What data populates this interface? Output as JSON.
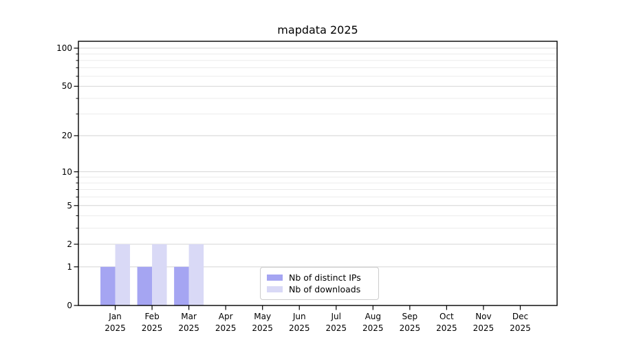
{
  "chart_data": {
    "type": "bar",
    "title": "mapdata 2025",
    "xlabel": "",
    "ylabel": "",
    "year_label": "2025",
    "months": [
      "Jan",
      "Feb",
      "Mar",
      "Apr",
      "May",
      "Jun",
      "Jul",
      "Aug",
      "Sep",
      "Oct",
      "Nov",
      "Dec"
    ],
    "categories": [
      "Jan 2025",
      "Feb 2025",
      "Mar 2025",
      "Apr 2025",
      "May 2025",
      "Jun 2025",
      "Jul 2025",
      "Aug 2025",
      "Sep 2025",
      "Oct 2025",
      "Nov 2025",
      "Dec 2025"
    ],
    "series": [
      {
        "name": "Nb of distinct IPs",
        "color": "#a5a5f2",
        "values": [
          1,
          1,
          1,
          0,
          0,
          0,
          0,
          0,
          0,
          0,
          0,
          0
        ]
      },
      {
        "name": "Nb of downloads",
        "color": "#d9d9f6",
        "values": [
          2,
          2,
          2,
          0,
          0,
          0,
          0,
          0,
          0,
          0,
          0,
          0
        ]
      }
    ],
    "y_scale": "log1p",
    "ylim": [
      0,
      113
    ],
    "y_major_ticks": [
      0,
      1,
      2,
      5,
      10,
      20,
      50,
      100
    ],
    "y_minor_ticks": [
      3,
      4,
      6,
      7,
      8,
      9,
      30,
      40,
      60,
      70,
      80,
      90
    ],
    "grid": "both",
    "legend": {
      "location": "lower center",
      "entries": [
        "Nb of distinct IPs",
        "Nb of downloads"
      ]
    },
    "colors": {
      "spine": "#000000",
      "major_grid": "#d4d4d4",
      "minor_grid": "#ebebeb",
      "legend_border": "#cccccc",
      "text": "#000000"
    }
  }
}
